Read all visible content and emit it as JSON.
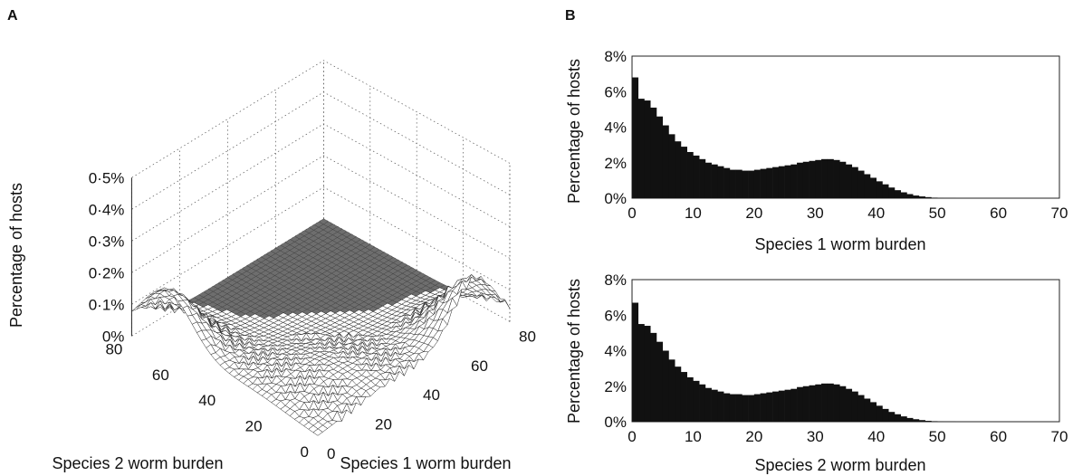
{
  "panels": {
    "a_label": "A",
    "b_label": "B"
  },
  "chart_data": [
    {
      "type": "surface3d",
      "panel": "A",
      "zlabel": "Percentage of hosts",
      "xlabel": "Species 1 worm burden",
      "ylabel": "Species 2 worm burden",
      "xlim": [
        0,
        80
      ],
      "ylim": [
        0,
        80
      ],
      "zlim": [
        0,
        0.5
      ],
      "x_ticks": [
        "0",
        "20",
        "40",
        "60",
        "80"
      ],
      "y_ticks": [
        "0",
        "20",
        "40",
        "60",
        "80"
      ],
      "z_ticks": [
        "0%",
        "0·1%",
        "0·2%",
        "0·3%",
        "0·4%",
        "0·5%"
      ],
      "peaks": [
        {
          "species1_burden": 0,
          "species2_burden": 65,
          "percent": 0.19
        },
        {
          "species1_burden": 65,
          "species2_burden": 0,
          "percent": 0.19
        }
      ],
      "grid": true
    },
    {
      "type": "bar",
      "panel": "B-top",
      "xlabel": "Species 1 worm burden",
      "ylabel": "Percentage of hosts",
      "xlim": [
        0,
        70
      ],
      "ylim": [
        0,
        8
      ],
      "x_ticks": [
        "0",
        "10",
        "20",
        "30",
        "40",
        "50",
        "60",
        "70"
      ],
      "y_ticks": [
        "0%",
        "2%",
        "4%",
        "6%",
        "8%"
      ],
      "x": [
        0,
        1,
        2,
        3,
        4,
        5,
        6,
        7,
        8,
        9,
        10,
        11,
        12,
        13,
        14,
        15,
        16,
        17,
        18,
        19,
        20,
        21,
        22,
        23,
        24,
        25,
        26,
        27,
        28,
        29,
        30,
        31,
        32,
        33,
        34,
        35,
        36,
        37,
        38,
        39,
        40,
        41,
        42,
        43,
        44,
        45,
        46,
        47,
        48,
        49,
        50,
        51,
        52,
        53,
        54,
        55,
        56,
        57,
        58,
        59,
        60,
        61,
        62,
        63,
        64,
        65,
        66,
        67,
        68,
        69
      ],
      "values": [
        6.8,
        5.6,
        5.5,
        5.1,
        4.6,
        4.1,
        3.6,
        3.2,
        2.9,
        2.6,
        2.4,
        2.2,
        2.0,
        1.9,
        1.8,
        1.7,
        1.6,
        1.6,
        1.55,
        1.55,
        1.6,
        1.65,
        1.7,
        1.75,
        1.8,
        1.85,
        1.9,
        2.0,
        2.05,
        2.1,
        2.15,
        2.2,
        2.2,
        2.15,
        2.05,
        1.9,
        1.75,
        1.55,
        1.35,
        1.15,
        0.95,
        0.78,
        0.6,
        0.45,
        0.33,
        0.23,
        0.15,
        0.1,
        0.06,
        0.03,
        0.02,
        0.01,
        0.01,
        0,
        0,
        0,
        0,
        0,
        0,
        0,
        0,
        0,
        0,
        0,
        0,
        0,
        0,
        0,
        0,
        0
      ],
      "bar_color": "#111111"
    },
    {
      "type": "bar",
      "panel": "B-bottom",
      "xlabel": "Species 2 worm burden",
      "ylabel": "Percentage of hosts",
      "xlim": [
        0,
        70
      ],
      "ylim": [
        0,
        8
      ],
      "x_ticks": [
        "0",
        "10",
        "20",
        "30",
        "40",
        "50",
        "60",
        "70"
      ],
      "y_ticks": [
        "0%",
        "2%",
        "4%",
        "6%",
        "8%"
      ],
      "x": [
        0,
        1,
        2,
        3,
        4,
        5,
        6,
        7,
        8,
        9,
        10,
        11,
        12,
        13,
        14,
        15,
        16,
        17,
        18,
        19,
        20,
        21,
        22,
        23,
        24,
        25,
        26,
        27,
        28,
        29,
        30,
        31,
        32,
        33,
        34,
        35,
        36,
        37,
        38,
        39,
        40,
        41,
        42,
        43,
        44,
        45,
        46,
        47,
        48,
        49,
        50,
        51,
        52,
        53,
        54,
        55,
        56,
        57,
        58,
        59,
        60,
        61,
        62,
        63,
        64,
        65,
        66,
        67,
        68,
        69
      ],
      "values": [
        6.7,
        5.5,
        5.4,
        5.0,
        4.5,
        4.0,
        3.5,
        3.1,
        2.8,
        2.5,
        2.3,
        2.1,
        1.9,
        1.8,
        1.7,
        1.6,
        1.55,
        1.55,
        1.5,
        1.5,
        1.55,
        1.6,
        1.65,
        1.7,
        1.75,
        1.8,
        1.85,
        1.95,
        2.0,
        2.05,
        2.1,
        2.15,
        2.15,
        2.1,
        2.0,
        1.85,
        1.7,
        1.5,
        1.3,
        1.1,
        0.9,
        0.72,
        0.55,
        0.42,
        0.3,
        0.21,
        0.14,
        0.09,
        0.05,
        0.03,
        0.02,
        0.01,
        0.01,
        0,
        0,
        0,
        0,
        0,
        0,
        0,
        0,
        0,
        0,
        0,
        0,
        0,
        0,
        0,
        0,
        0
      ],
      "bar_color": "#111111"
    }
  ]
}
